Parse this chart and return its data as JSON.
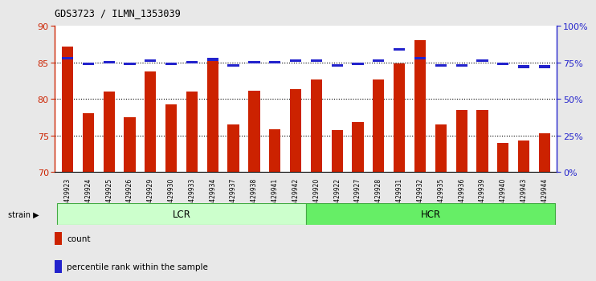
{
  "title": "GDS3723 / ILMN_1353039",
  "samples": [
    "GSM429923",
    "GSM429924",
    "GSM429925",
    "GSM429926",
    "GSM429929",
    "GSM429930",
    "GSM429933",
    "GSM429934",
    "GSM429937",
    "GSM429938",
    "GSM429941",
    "GSM429942",
    "GSM429920",
    "GSM429922",
    "GSM429927",
    "GSM429928",
    "GSM429931",
    "GSM429932",
    "GSM429935",
    "GSM429936",
    "GSM429939",
    "GSM429940",
    "GSM429943",
    "GSM429944"
  ],
  "counts": [
    87.2,
    78.0,
    81.0,
    77.5,
    83.8,
    79.3,
    81.0,
    85.3,
    76.5,
    81.1,
    75.8,
    81.3,
    82.7,
    75.7,
    76.8,
    82.7,
    84.8,
    88.0,
    76.5,
    78.5,
    78.5,
    74.0,
    74.3,
    75.3
  ],
  "percentile_ranks": [
    78,
    74,
    75,
    74,
    76,
    74,
    75,
    77,
    73,
    75,
    75,
    76,
    76,
    73,
    74,
    76,
    84,
    78,
    73,
    73,
    76,
    74,
    72,
    72
  ],
  "groups": {
    "LCR": [
      0,
      12
    ],
    "HCR": [
      12,
      24
    ]
  },
  "group_labels": [
    "LCR",
    "HCR"
  ],
  "bar_color": "#cc2200",
  "percentile_color": "#2222cc",
  "ylim_left": [
    70,
    90
  ],
  "ylim_right": [
    0,
    100
  ],
  "yticks_left": [
    70,
    75,
    80,
    85,
    90
  ],
  "yticks_right": [
    0,
    25,
    50,
    75,
    100
  ],
  "ytick_labels_right": [
    "0%",
    "25%",
    "50%",
    "75%",
    "100%"
  ],
  "background_color": "#e8e8e8",
  "plot_bg_color": "#ffffff",
  "lcr_color": "#ccffcc",
  "hcr_color": "#66ee66",
  "strain_label": "strain",
  "legend_count": "count",
  "legend_percentile": "percentile rank within the sample"
}
